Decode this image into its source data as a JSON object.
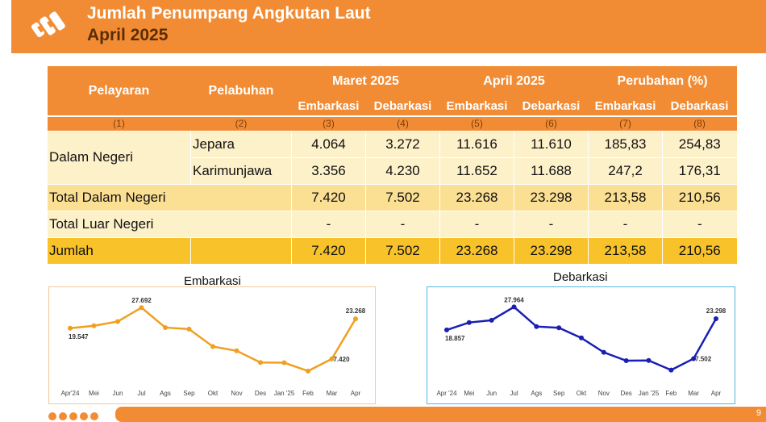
{
  "header": {
    "title": "Jumlah Penumpang Angkutan Laut",
    "subtitle": "April 2025",
    "colors": {
      "bar": "#f28c34",
      "title": "#ffffff",
      "subtitle": "#5b2c06"
    },
    "logo_icon": "bps-logo-icon"
  },
  "table": {
    "col_pelayaran": "Pelayaran",
    "col_pelabuhan": "Pelabuhan",
    "group_maret": "Maret 2025",
    "group_april": "April 2025",
    "group_perubahan": "Perubahan (%)",
    "sub_embarkasi": "Embarkasi",
    "sub_debarkasi": "Debarkasi",
    "col_numbers": [
      "(1)",
      "(2)",
      "(3)",
      "(4)",
      "(5)",
      "(6)",
      "(7)",
      "(8)"
    ],
    "dalam_negeri_label": "Dalam Negeri",
    "rows": [
      {
        "port": "Jepara",
        "values": [
          "4.064",
          "3.272",
          "11.616",
          "11.610",
          "185,83",
          "254,83"
        ]
      },
      {
        "port": "Karimunjawa",
        "values": [
          "3.356",
          "4.230",
          "11.652",
          "11.688",
          "247,2",
          "176,31"
        ]
      }
    ],
    "total_dalam": {
      "label": "Total Dalam Negeri",
      "values": [
        "7.420",
        "7.502",
        "23.268",
        "23.298",
        "213,58",
        "210,56"
      ]
    },
    "total_luar": {
      "label": "Total Luar Negeri",
      "values": [
        "-",
        "-",
        "-",
        "-",
        "-",
        "-"
      ]
    },
    "jumlah": {
      "label": "Jumlah",
      "values": [
        "7.420",
        "7.502",
        "23.268",
        "23.298",
        "213,58",
        "210,56"
      ]
    },
    "colors": {
      "header": "#f28c34",
      "light": "#fdf1c9",
      "mid": "#fbdf93",
      "dark": "#f7c22a"
    }
  },
  "chart_data": [
    {
      "type": "line",
      "title": "Embarkasi",
      "categories": [
        "Apr'24",
        "Mei",
        "Jun",
        "Jul",
        "Ags",
        "Sep",
        "Okt",
        "Nov",
        "Des",
        "Jan '25",
        "Feb",
        "Mar",
        "Apr"
      ],
      "series": [
        {
          "values": [
            19547,
            20500,
            22200,
            27692,
            19800,
            19200,
            12300,
            10600,
            6000,
            5900,
            2600,
            7420,
            23268
          ],
          "color": "#f0a020"
        }
      ],
      "data_labels": [
        {
          "index": 0,
          "text": "19.547"
        },
        {
          "index": 3,
          "text": "27.692"
        },
        {
          "index": 11,
          "text": "7.420"
        },
        {
          "index": 12,
          "text": "23.268"
        }
      ],
      "ylim": [
        0,
        30000
      ],
      "grid": false,
      "border_color": "#f2c99a"
    },
    {
      "type": "line",
      "title": "Debarkasi",
      "categories": [
        "Apr '24",
        "Mei",
        "Jun",
        "Jul",
        "Ags",
        "Sep",
        "Okt",
        "Nov",
        "Des",
        "Jan '25",
        "Feb",
        "Mar",
        "Apr"
      ],
      "series": [
        {
          "values": [
            18857,
            21800,
            22700,
            27964,
            20200,
            19700,
            15700,
            10000,
            6700,
            6800,
            3000,
            7502,
            23298
          ],
          "color": "#1a1fb3"
        }
      ],
      "data_labels": [
        {
          "index": 0,
          "text": "18.857"
        },
        {
          "index": 3,
          "text": "27.964"
        },
        {
          "index": 11,
          "text": "7.502"
        },
        {
          "index": 12,
          "text": "23.298"
        }
      ],
      "ylim": [
        0,
        30000
      ],
      "grid": false,
      "border_color": "#55b4e0"
    }
  ],
  "footer": {
    "page_number": "9",
    "dot_count": 5
  }
}
